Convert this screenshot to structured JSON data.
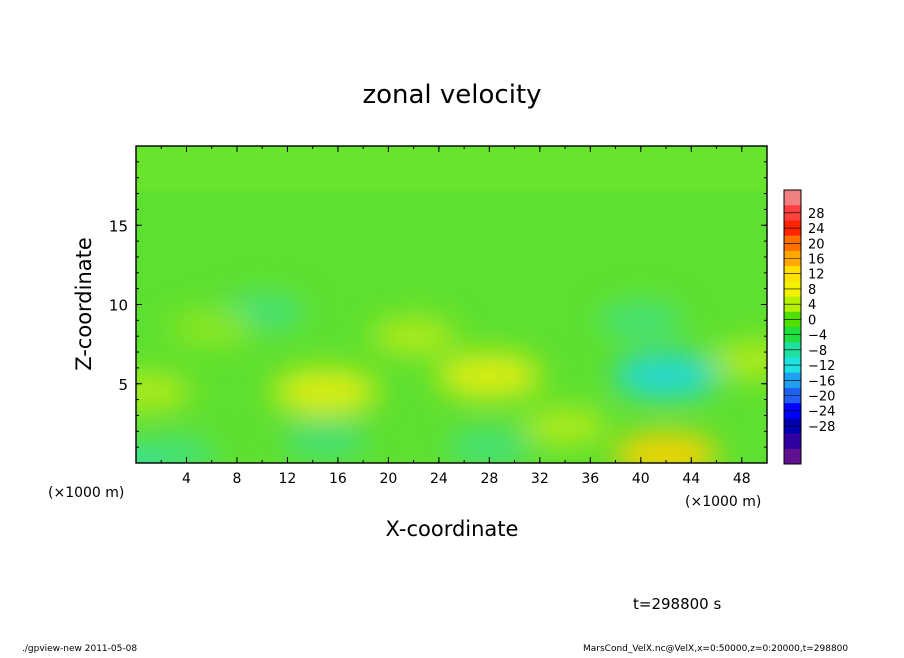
{
  "chart_data": {
    "type": "heatmap",
    "title": "zonal velocity",
    "xlabel": "X-coordinate",
    "ylabel": "Z-coordinate",
    "x_unit_label": "(×1000 m)",
    "x_unit_label_right": "(×1000 m)",
    "xlim": [
      0,
      50
    ],
    "ylim": [
      0,
      20
    ],
    "x_ticks": [
      4,
      8,
      12,
      16,
      20,
      24,
      28,
      32,
      36,
      40,
      44,
      48
    ],
    "x_tick_labels": [
      "4",
      "8",
      "12",
      "16",
      "20",
      "24",
      "28",
      "32",
      "36",
      "40",
      "44",
      "48"
    ],
    "y_ticks": [
      5,
      10,
      15
    ],
    "y_tick_labels": [
      "5",
      "10",
      "15"
    ],
    "colorbar": {
      "labels": [
        "28",
        "24",
        "20",
        "16",
        "12",
        "8",
        "4",
        "0",
        "−4",
        "−8",
        "−12",
        "−16",
        "−20",
        "−24",
        "−28"
      ],
      "colors": [
        "#f08080",
        "#ff4040",
        "#ff2400",
        "#ff7000",
        "#ffa800",
        "#ffe000",
        "#f2f200",
        "#b4f000",
        "#50e000",
        "#20e040",
        "#20e0a0",
        "#20e0e0",
        "#20a0f0",
        "#2060f0",
        "#0000ff",
        "#0000b0",
        "#3000a0",
        "#601090"
      ]
    },
    "features": [
      {
        "x": 0,
        "z": 0,
        "value": -8
      },
      {
        "x": 3,
        "z": 0.5,
        "value": -6
      },
      {
        "x": 1,
        "z": 4.5,
        "value": 6
      },
      {
        "x": 15,
        "z": 4.5,
        "value": 9
      },
      {
        "x": 15,
        "z": 1.5,
        "value": -5
      },
      {
        "x": 28,
        "z": 5.5,
        "value": 9
      },
      {
        "x": 28,
        "z": 1,
        "value": -6
      },
      {
        "x": 34,
        "z": 2.3,
        "value": 7
      },
      {
        "x": 42,
        "z": 5.5,
        "value": -10
      },
      {
        "x": 42,
        "z": 0.5,
        "value": 12
      },
      {
        "x": 49,
        "z": 6.5,
        "value": 6
      },
      {
        "x": 10,
        "z": 9.5,
        "value": -5
      },
      {
        "x": 40,
        "z": 9,
        "value": -5
      },
      {
        "x": 6,
        "z": 8.5,
        "value": 4
      },
      {
        "x": 22,
        "z": 8,
        "value": 5
      }
    ]
  },
  "annotations": {
    "time": "t=298800 s",
    "footer_left": "./gpview-new  2011-05-08",
    "footer_right": "MarsCond_VelX.nc@VelX,x=0:50000,z=0:20000,t=298800"
  }
}
